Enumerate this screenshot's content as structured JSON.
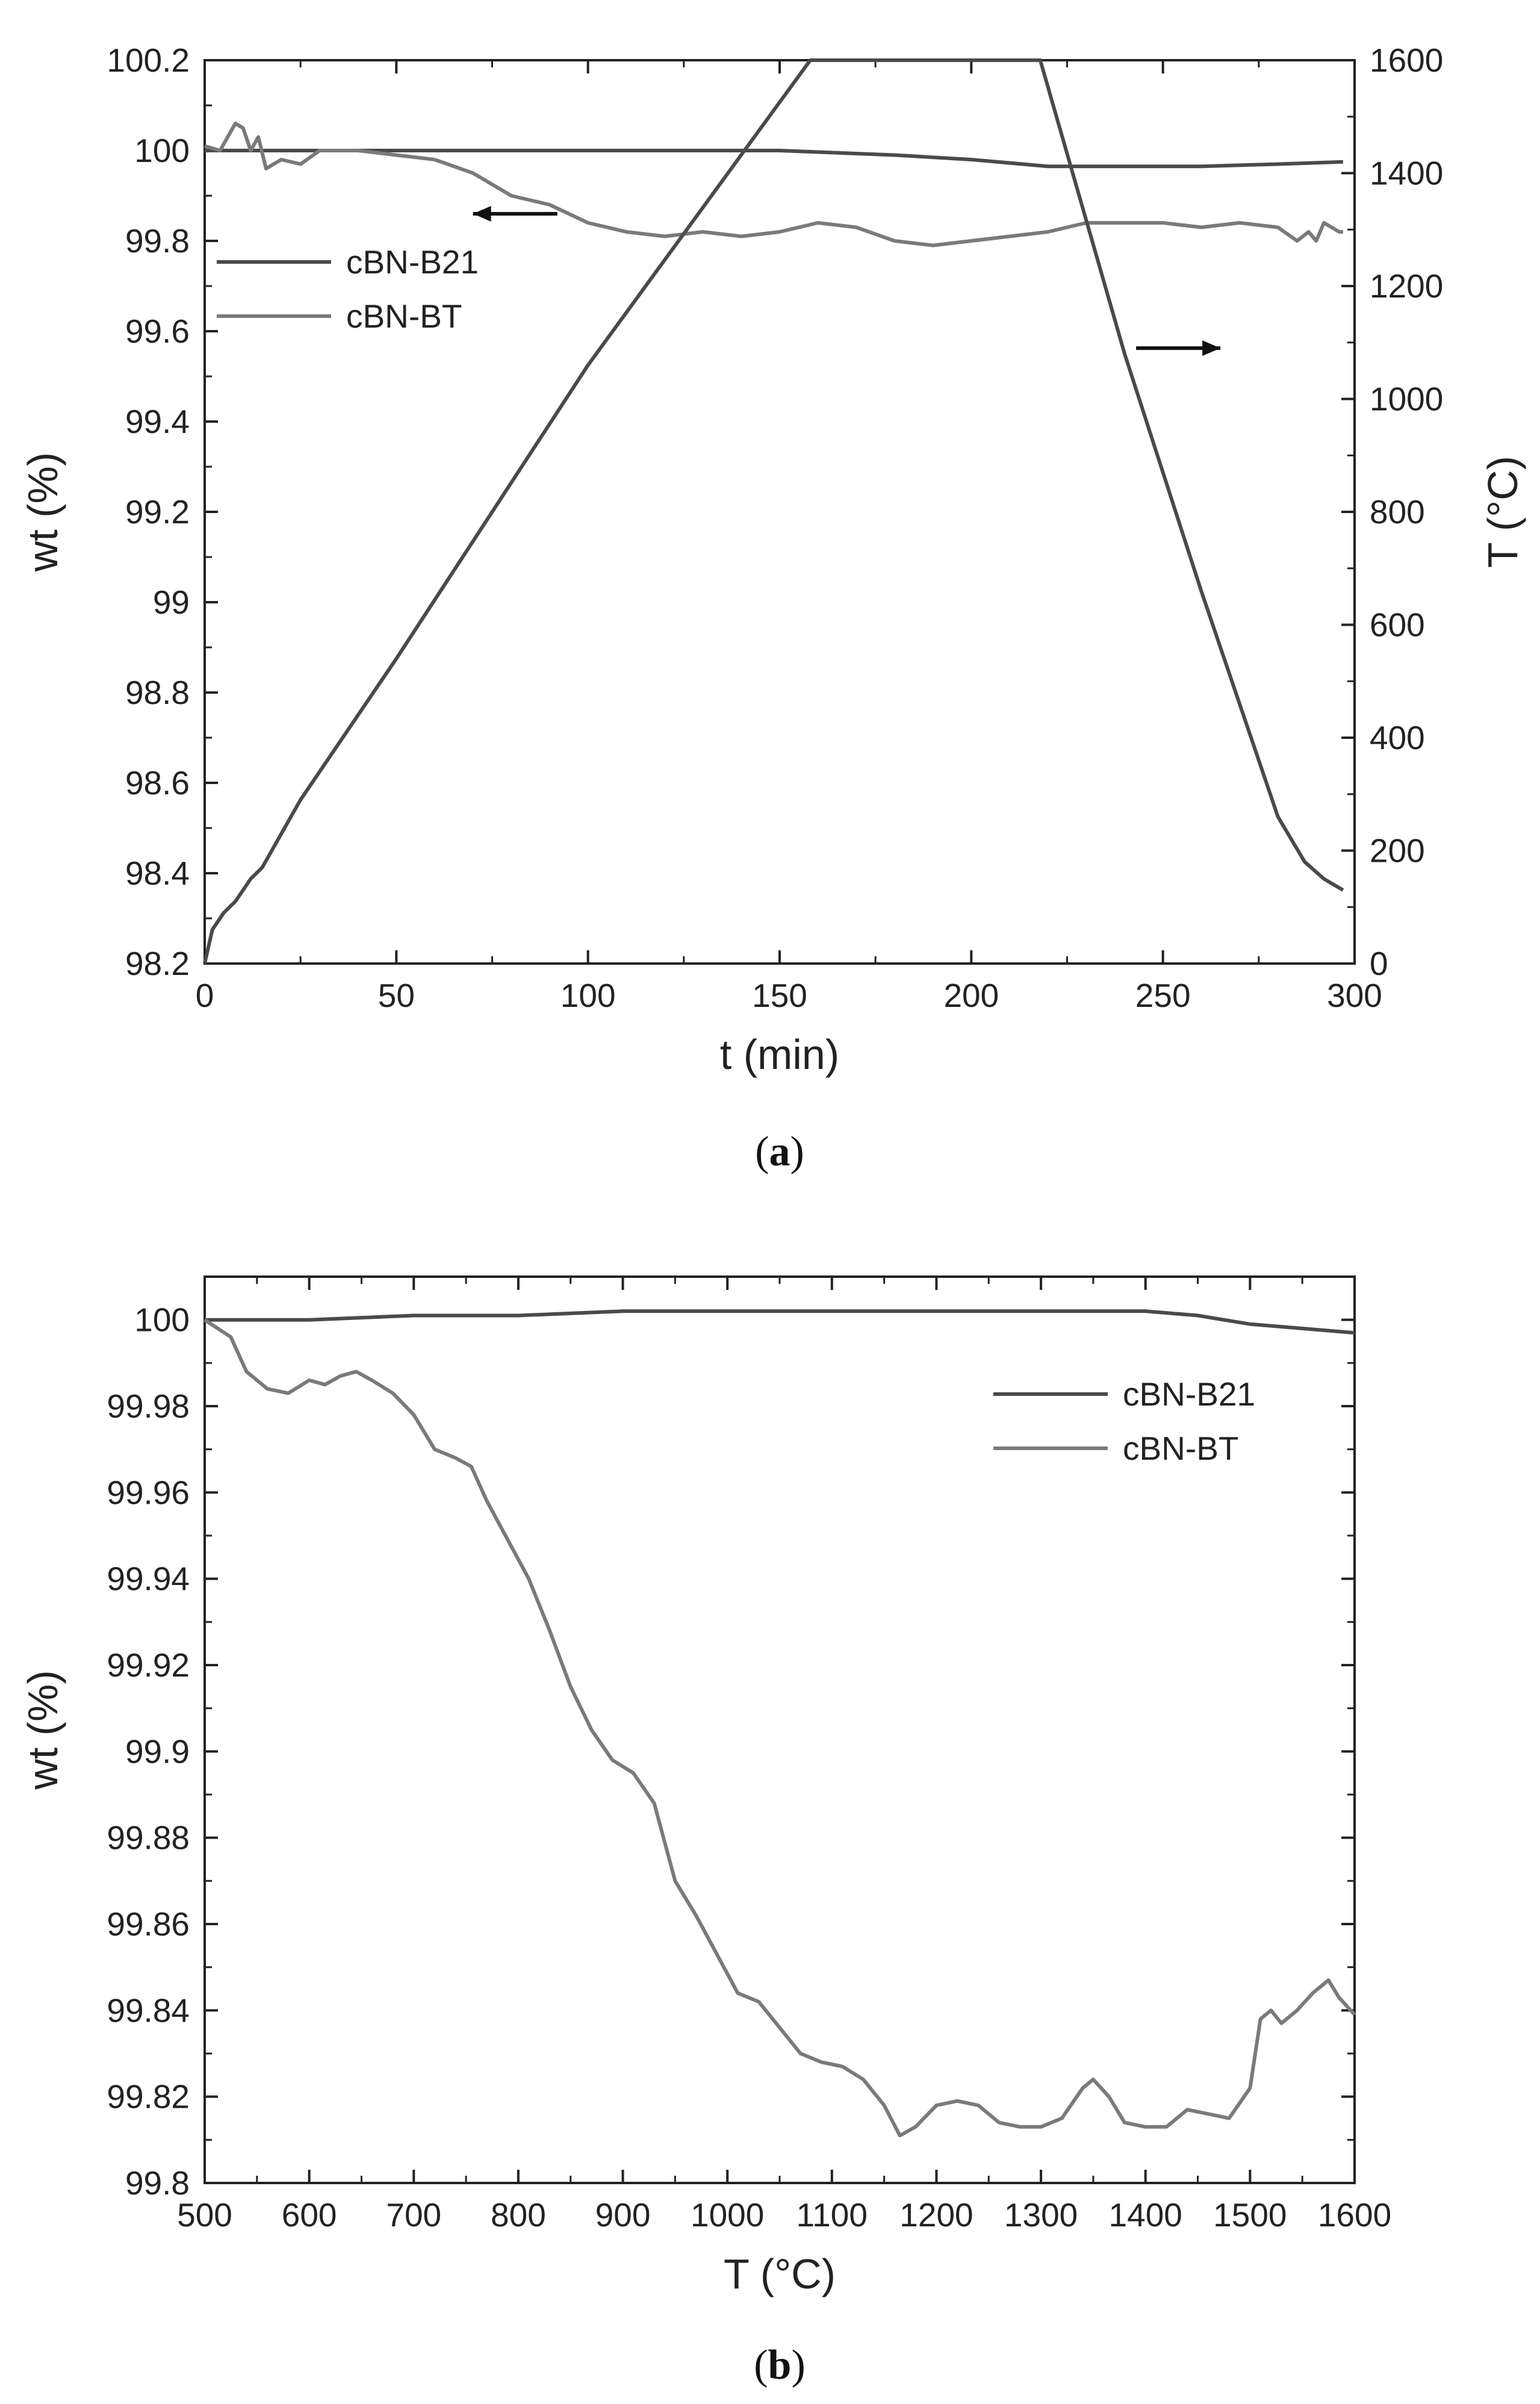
{
  "colors": {
    "b21": "#4a4a4a",
    "bt": "#7a7a7a",
    "temp": "#4a4a4a",
    "axis": "#222222"
  },
  "chart_data": [
    {
      "id": "a",
      "type": "line",
      "caption_label": "a",
      "xlabel": "t (min)",
      "ylabel": "wt (%)",
      "y2label": "T (°C)",
      "xlim": [
        0,
        300
      ],
      "ylim": [
        98.2,
        100.2
      ],
      "y2lim": [
        0,
        1600
      ],
      "x_ticks": [
        "0",
        "50",
        "100",
        "150",
        "200",
        "250",
        "300"
      ],
      "y_ticks": [
        "98.2",
        "98.4",
        "98.6",
        "98.8",
        "99",
        "99.2",
        "99.4",
        "99.6",
        "99.8",
        "100",
        "100.2"
      ],
      "y2_ticks": [
        "0",
        "200",
        "400",
        "600",
        "800",
        "1000",
        "1200",
        "1400",
        "1600"
      ],
      "legend": [
        "cBN-B21",
        "cBN-BT"
      ],
      "legend_position": "upper-left",
      "series": [
        {
          "name": "cBN-B21",
          "axis": "left",
          "x": [
            0,
            20,
            50,
            100,
            150,
            180,
            200,
            220,
            260,
            280,
            297
          ],
          "y": [
            100.0,
            100.0,
            100.0,
            100.0,
            100.0,
            99.99,
            99.98,
            99.965,
            99.965,
            99.97,
            99.975
          ]
        },
        {
          "name": "cBN-BT",
          "axis": "left",
          "x": [
            0,
            4,
            8,
            10,
            12,
            14,
            16,
            20,
            25,
            30,
            40,
            50,
            60,
            70,
            80,
            90,
            100,
            110,
            120,
            130,
            140,
            150,
            160,
            170,
            180,
            190,
            200,
            210,
            220,
            230,
            240,
            250,
            260,
            270,
            280,
            285,
            288,
            290,
            292,
            294,
            296,
            297
          ],
          "y": [
            100.01,
            100.0,
            100.06,
            100.05,
            100.0,
            100.03,
            99.96,
            99.98,
            99.97,
            100.0,
            100.0,
            99.99,
            99.98,
            99.95,
            99.9,
            99.88,
            99.84,
            99.82,
            99.81,
            99.82,
            99.81,
            99.82,
            99.84,
            99.83,
            99.8,
            99.79,
            99.8,
            99.81,
            99.82,
            99.84,
            99.84,
            99.84,
            99.83,
            99.84,
            99.83,
            99.8,
            99.82,
            99.8,
            99.84,
            99.83,
            99.82,
            99.82
          ]
        },
        {
          "name": "Temperature",
          "axis": "right",
          "x": [
            0,
            2,
            5,
            8,
            12,
            15,
            20,
            25,
            30,
            50,
            100,
            158,
            218,
            240,
            260,
            280,
            287,
            292,
            297
          ],
          "y": [
            0,
            60,
            90,
            110,
            150,
            170,
            230,
            290,
            340,
            540,
            1060,
            1600,
            1600,
            1080,
            660,
            260,
            180,
            150,
            130
          ]
        }
      ],
      "arrows": [
        {
          "label": "left",
          "x_from": 92,
          "x_to": 70,
          "y": 99.86
        },
        {
          "label": "right",
          "x_from": 243,
          "x_to": 265,
          "y2": 1090
        }
      ]
    },
    {
      "id": "b",
      "type": "line",
      "caption_label": "b",
      "xlabel": "T (°C)",
      "ylabel": "wt (%)",
      "xlim": [
        500,
        1600
      ],
      "ylim": [
        99.8,
        100.01
      ],
      "x_ticks": [
        "500",
        "600",
        "700",
        "800",
        "900",
        "1000",
        "1100",
        "1200",
        "1300",
        "1400",
        "1500",
        "1600"
      ],
      "y_ticks": [
        "99.8",
        "99.82",
        "99.84",
        "99.86",
        "99.88",
        "99.9",
        "99.92",
        "99.94",
        "99.96",
        "99.98",
        "100"
      ],
      "legend": [
        "cBN-B21",
        "cBN-BT"
      ],
      "legend_position": "upper-right",
      "series": [
        {
          "name": "cBN-B21",
          "x": [
            500,
            600,
            700,
            800,
            900,
            1000,
            1100,
            1200,
            1300,
            1400,
            1450,
            1500,
            1550,
            1600
          ],
          "y": [
            100.0,
            100.0,
            100.001,
            100.001,
            100.002,
            100.002,
            100.002,
            100.002,
            100.002,
            100.002,
            100.001,
            99.999,
            99.998,
            99.997
          ]
        },
        {
          "name": "cBN-BT",
          "x": [
            500,
            525,
            540,
            560,
            580,
            600,
            615,
            630,
            645,
            660,
            680,
            700,
            720,
            740,
            755,
            770,
            790,
            810,
            830,
            850,
            870,
            890,
            910,
            930,
            950,
            970,
            990,
            1010,
            1030,
            1050,
            1070,
            1090,
            1110,
            1130,
            1150,
            1165,
            1180,
            1200,
            1220,
            1240,
            1260,
            1280,
            1300,
            1320,
            1340,
            1350,
            1365,
            1380,
            1400,
            1420,
            1440,
            1460,
            1480,
            1500,
            1510,
            1520,
            1530,
            1545,
            1560,
            1575,
            1585,
            1600
          ],
          "y": [
            100.0,
            99.996,
            99.988,
            99.984,
            99.983,
            99.986,
            99.985,
            99.987,
            99.988,
            99.986,
            99.983,
            99.978,
            99.97,
            99.968,
            99.966,
            99.958,
            99.949,
            99.94,
            99.928,
            99.915,
            99.905,
            99.898,
            99.895,
            99.888,
            99.87,
            99.862,
            99.853,
            99.844,
            99.842,
            99.836,
            99.83,
            99.828,
            99.827,
            99.824,
            99.818,
            99.811,
            99.813,
            99.818,
            99.819,
            99.818,
            99.814,
            99.813,
            99.813,
            99.815,
            99.822,
            99.824,
            99.82,
            99.814,
            99.813,
            99.813,
            99.817,
            99.816,
            99.815,
            99.822,
            99.838,
            99.84,
            99.837,
            99.84,
            99.844,
            99.847,
            99.843,
            99.839
          ]
        }
      ]
    }
  ]
}
